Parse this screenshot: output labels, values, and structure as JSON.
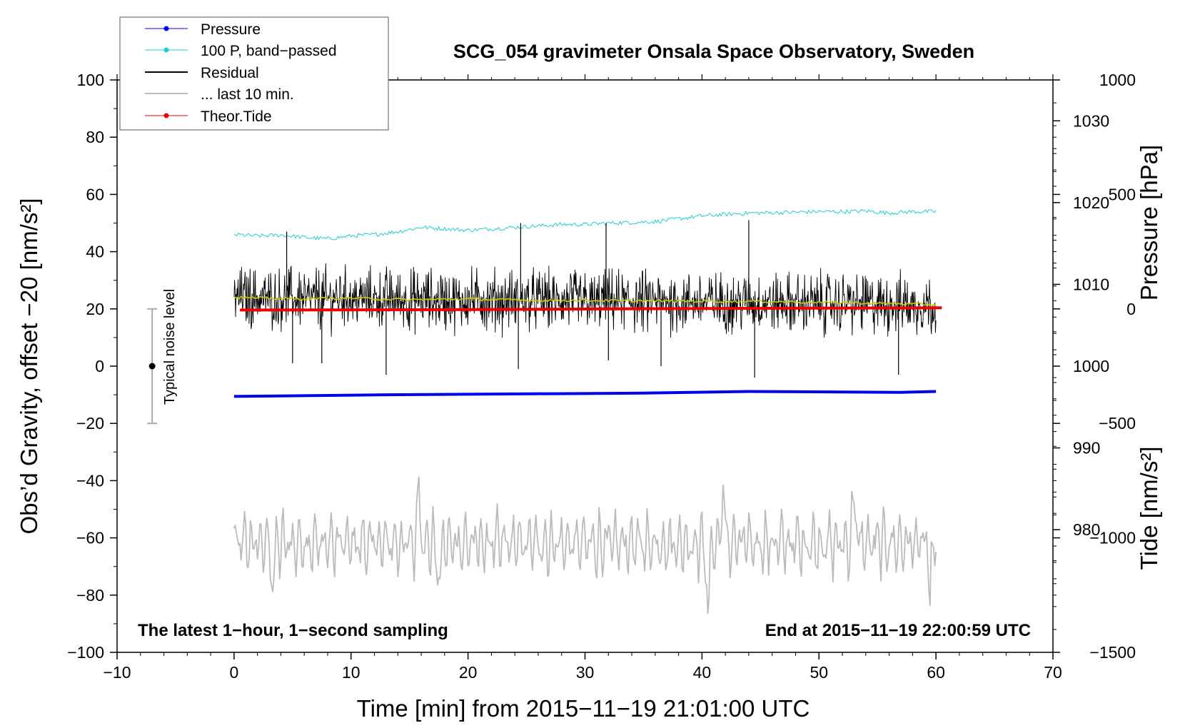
{
  "chart_data": {
    "type": "line",
    "title": "SCG_054 gravimeter Onsala Space Observatory, Sweden",
    "xlabel": "Time [min] from 2015−11−19 21:01:00 UTC",
    "ylabel_left": "Obs’d Gravity, offset −20 [nm/s²]",
    "ylabel_pressure": "Pressure [hPa]",
    "ylabel_tide": "Tide [nm/s²]",
    "note_left": "The latest 1−hour, 1−second sampling",
    "note_right": "End at 2015−11−19 22:00:59 UTC",
    "noise_label": "Typical noise level",
    "xlim": [
      -10,
      70
    ],
    "ylim": [
      -100,
      100
    ],
    "pressure_lim": [
      965,
      1035
    ],
    "tide_lim": [
      -1500,
      1000
    ],
    "x_ticks": [
      {
        "v": -10,
        "label": "−10"
      },
      {
        "v": 0,
        "label": "0"
      },
      {
        "v": 10,
        "label": "10"
      },
      {
        "v": 20,
        "label": "20"
      },
      {
        "v": 30,
        "label": "30"
      },
      {
        "v": 40,
        "label": "40"
      },
      {
        "v": 50,
        "label": "50"
      },
      {
        "v": 60,
        "label": "60"
      },
      {
        "v": 70,
        "label": "70"
      }
    ],
    "y_ticks": [
      {
        "v": -100,
        "label": "−100"
      },
      {
        "v": -80,
        "label": "−80"
      },
      {
        "v": -60,
        "label": "−60"
      },
      {
        "v": -40,
        "label": "−40"
      },
      {
        "v": -20,
        "label": "−20"
      },
      {
        "v": 0,
        "label": "0"
      },
      {
        "v": 20,
        "label": "20"
      },
      {
        "v": 40,
        "label": "40"
      },
      {
        "v": 60,
        "label": "60"
      },
      {
        "v": 80,
        "label": "80"
      },
      {
        "v": 100,
        "label": "100"
      }
    ],
    "pressure_ticks": [
      {
        "v": 980,
        "label": "980"
      },
      {
        "v": 990,
        "label": "990"
      },
      {
        "v": 1000,
        "label": "1000"
      },
      {
        "v": 1010,
        "label": "1010"
      },
      {
        "v": 1020,
        "label": "1020"
      },
      {
        "v": 1030,
        "label": "1030"
      }
    ],
    "tide_ticks": [
      {
        "v": -1500,
        "label": "−1500"
      },
      {
        "v": -1000,
        "label": "−1000"
      },
      {
        "v": -500,
        "label": "−500"
      },
      {
        "v": 0,
        "label": "0"
      },
      {
        "v": 500,
        "label": "500"
      },
      {
        "v": 1000,
        "label": "1000"
      }
    ],
    "legend": [
      {
        "label": "Pressure",
        "color": "#0000ee",
        "marker": true
      },
      {
        "label": "100 P, band−passed",
        "color": "#22cccc",
        "marker": true
      },
      {
        "label": "Residual",
        "color": "#000000",
        "marker": false
      },
      {
        "label": "... last 10 min.",
        "color": "#bbbbbb",
        "marker": false
      },
      {
        "label": "Theor.Tide",
        "color": "#ee0000",
        "marker": true
      }
    ],
    "series": [
      {
        "name": "Pressure",
        "axis": "pressure",
        "color": "#0000ee",
        "x": [
          0,
          13,
          35,
          44,
          57,
          60
        ],
        "y": [
          996.3,
          996.5,
          996.7,
          996.9,
          996.8,
          996.9
        ]
      },
      {
        "name": "100 P, band−passed",
        "axis": "left",
        "color": "#22cccc",
        "x": [
          0,
          2,
          4,
          6,
          8,
          10,
          12,
          14,
          16,
          18,
          20,
          22,
          24,
          26,
          28,
          30,
          32,
          34,
          36,
          38,
          40,
          42,
          44,
          46,
          48,
          50,
          52,
          54,
          56,
          58,
          60
        ],
        "y": [
          46,
          45.5,
          45.8,
          45,
          44.5,
          45.5,
          46,
          47,
          48.5,
          48,
          47.5,
          48,
          48.5,
          49,
          49.5,
          49.5,
          50,
          50.2,
          50.5,
          51.5,
          52.5,
          53,
          53.5,
          53.6,
          53.8,
          54,
          54,
          54.2,
          53.5,
          54,
          54
        ]
      },
      {
        "name": "Residual",
        "axis": "left",
        "color": "#000000",
        "center": [
          24,
          21.5
        ],
        "amplitude": 7,
        "spikes": [
          {
            "x": 4.5,
            "y": 47
          },
          {
            "x": 5,
            "y": 1
          },
          {
            "x": 7.5,
            "y": 1
          },
          {
            "x": 13,
            "y": -3
          },
          {
            "x": 24.5,
            "y": 50
          },
          {
            "x": 24.3,
            "y": -1
          },
          {
            "x": 31.8,
            "y": 50
          },
          {
            "x": 32,
            "y": 2
          },
          {
            "x": 36.5,
            "y": 0
          },
          {
            "x": 44,
            "y": 51
          },
          {
            "x": 44.5,
            "y": -4
          },
          {
            "x": 56.8,
            "y": -3
          }
        ]
      },
      {
        "name": "Smoothed residual",
        "axis": "left",
        "color": "#cccc00",
        "x": [
          0,
          5,
          10,
          15,
          20,
          25,
          30,
          35,
          40,
          45,
          50,
          55,
          60
        ],
        "y": [
          24,
          23.5,
          23.8,
          23.2,
          23.5,
          23,
          23,
          22.8,
          22.7,
          22.6,
          22.3,
          22,
          21.5
        ]
      },
      {
        "name": "... last 10 min.",
        "axis": "left",
        "color": "#bbbbbb",
        "center": -62,
        "amplitude": 6,
        "peaks": [
          {
            "x": 3.3,
            "y": -77
          },
          {
            "x": 15.8,
            "y": -40
          },
          {
            "x": 17.5,
            "y": -78
          },
          {
            "x": 40.5,
            "y": -87
          },
          {
            "x": 41.8,
            "y": -42
          },
          {
            "x": 53,
            "y": -43
          },
          {
            "x": 59.5,
            "y": -80
          }
        ]
      },
      {
        "name": "Theor.Tide",
        "axis": "tide",
        "color": "#ee0000",
        "x": [
          0.5,
          20,
          40,
          60.5
        ],
        "y": [
          -5,
          -3,
          2,
          5
        ]
      }
    ],
    "noise_bar": {
      "x": -7,
      "center": 0,
      "low": -20,
      "high": 20
    }
  }
}
